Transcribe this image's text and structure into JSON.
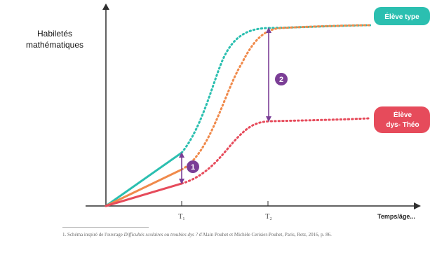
{
  "y_axis_label": "Habiletés mathématiques",
  "x_axis_label": "Temps/âge...",
  "time_markers": [
    "T₁",
    "T₂"
  ],
  "legend": {
    "typical": "Élève type",
    "dys_line1": "Élève",
    "dys_line2": "dys- Théo"
  },
  "gaps": [
    {
      "number": "1"
    },
    {
      "number": "2"
    }
  ],
  "colors": {
    "typical": "#2bbfb0",
    "intermediate": "#f08a4b",
    "dys": "#e64b5b",
    "gap_marker": "#7b3e96",
    "axis": "#2f2f2f"
  },
  "footnote": {
    "prefix": "1. Schéma inspiré de l'ouvrage ",
    "book_title": "Difficultés scolaires ou troubles dys ?",
    "suffix": " d'Alain Pouhet et Michèle Cerisier-Pouhet, Paris, Retz, 2016, p. 86."
  }
}
